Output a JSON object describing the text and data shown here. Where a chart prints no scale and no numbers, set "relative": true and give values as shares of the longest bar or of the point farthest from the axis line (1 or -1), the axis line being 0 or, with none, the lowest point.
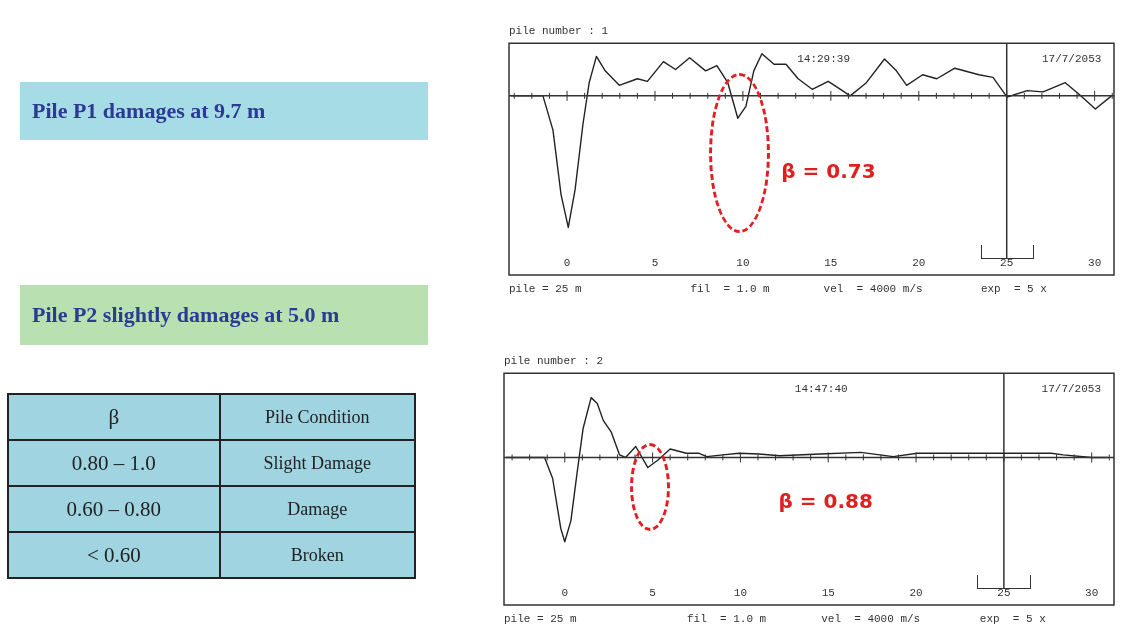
{
  "chart_data": [
    {
      "type": "other",
      "annotations": [
        "Pile P1  damages at 9.7 m",
        "Pile P2  slightly damages at 5.0 m",
        "β",
        "Pile Condition",
        "0.80 –  1.0",
        "Slight Damage",
        "0.60 – 0.80",
        "Damage",
        "< 0.60",
        "Broken"
      ]
    },
    {
      "type": "line",
      "title": "pile number : 1",
      "relative": true,
      "xlim": [
        -3.3,
        31.1
      ],
      "xticks": [
        0,
        5,
        10,
        15,
        20,
        25,
        30
      ],
      "grid": false,
      "legend": false,
      "marker": "none",
      "line_style": "solid",
      "x": [
        -3.2,
        -1.37,
        -0.8,
        -0.34,
        0.07,
        0.46,
        0.91,
        1.26,
        1.67,
        2.17,
        2.97,
        4.0,
        4.57,
        5.48,
        6.17,
        6.97,
        7.88,
        8.52,
        9.14,
        9.71,
        10.17,
        10.62,
        11.08,
        11.77,
        12.45,
        13.14,
        13.94,
        14.85,
        15.42,
        16.1,
        17.02,
        18.05,
        18.73,
        19.31,
        20.22,
        21.02,
        22.05,
        23.42,
        24.22,
        25.02,
        26.16,
        27.07,
        28.33,
        29.13,
        30.04,
        30.96
      ],
      "series": [
        {
          "color": "#222222",
          "values": [
            0,
            0,
            -0.26,
            -0.75,
            -1,
            -0.71,
            -0.21,
            0.1,
            0.3,
            0.19,
            0.08,
            0.13,
            0.11,
            0.26,
            0.2,
            0.29,
            0.19,
            0.23,
            0.1,
            -0.17,
            -0.08,
            0.19,
            0.32,
            0.24,
            0.24,
            0.13,
            0.05,
            0.11,
            0.06,
            0,
            0.1,
            0.28,
            0.19,
            0.08,
            0.16,
            0.13,
            0.21,
            0.16,
            0.14,
            -0.01,
            0.04,
            0.03,
            0.1,
            0.01,
            -0.1,
            0
          ]
        }
      ],
      "ref_lines": [
        {
          "axis": "y",
          "value": 0
        },
        {
          "axis": "x",
          "value": 25
        }
      ],
      "annotations": [
        "14:29:39",
        "17/7/2053",
        "β = 0.73",
        "pile = 25 m",
        "fil  = 1.0 m",
        "vel  = 4000 m/s",
        "exp  = 5 x"
      ]
    },
    {
      "type": "line",
      "title": "pile number : 2",
      "relative": true,
      "xlim": [
        -3.46,
        31.27
      ],
      "xticks": [
        0,
        5,
        10,
        15,
        20,
        25,
        30
      ],
      "grid": false,
      "legend": false,
      "marker": "none",
      "line_style": "solid",
      "x": [
        -3.35,
        -1.15,
        -0.69,
        -0.23,
        0,
        0.35,
        0.69,
        1.04,
        1.5,
        1.85,
        2.19,
        2.65,
        3.12,
        3.46,
        4.04,
        4.73,
        5.31,
        6.0,
        6.92,
        7.62,
        8.08,
        9.0,
        9.92,
        11.08,
        12.23,
        14.54,
        16.85,
        18.7,
        20.08,
        21.46,
        23.77,
        26.08,
        27.69,
        28.38,
        30.0,
        30.92
      ],
      "series": [
        {
          "color": "#222222",
          "values": [
            0,
            0,
            -0.25,
            -0.84,
            -1,
            -0.75,
            -0.2,
            0.34,
            0.71,
            0.64,
            0.44,
            0.3,
            0.03,
            0,
            0.13,
            -0.12,
            -0.03,
            0.1,
            0.05,
            0.05,
            0.01,
            0.03,
            0.05,
            0.04,
            0.02,
            0.04,
            0.06,
            0.01,
            0.05,
            0.05,
            0.05,
            0.05,
            0.05,
            0.03,
            0,
            0
          ]
        }
      ],
      "ref_lines": [
        {
          "axis": "y",
          "value": 0
        },
        {
          "axis": "x",
          "value": 25
        }
      ],
      "annotations": [
        "14:47:40",
        "17/7/2053",
        "β = 0.88",
        "pile = 25 m",
        "fil  = 1.0 m",
        "vel  = 4000 m/s",
        "exp  = 5 x"
      ]
    }
  ]
}
